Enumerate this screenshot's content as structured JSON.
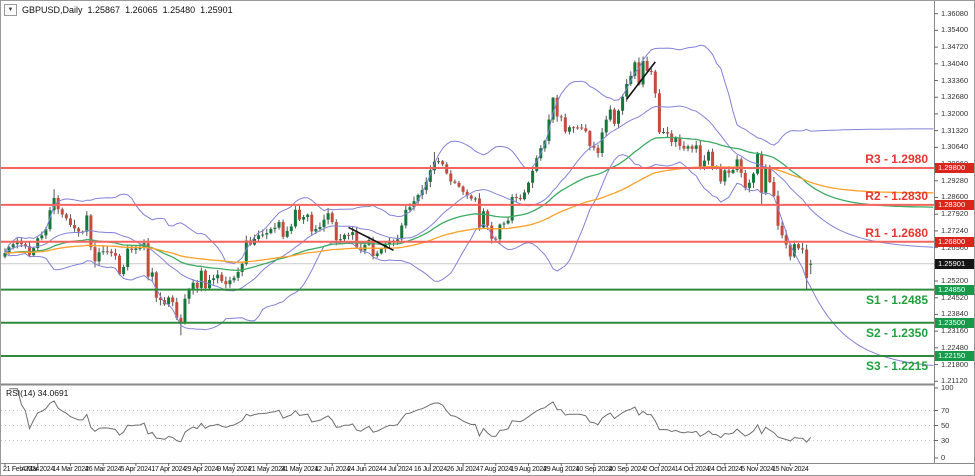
{
  "window": {
    "symbol": "GBPUSD,Daily",
    "ohlc": {
      "open": "1.25867",
      "high": "1.26065",
      "low": "1.25480",
      "close": "1.25901"
    },
    "collapse_icon": "▼"
  },
  "rsi": {
    "name_label": "RSI(14)",
    "value_label": "34.0691",
    "levels": [
      70,
      50,
      30
    ],
    "scale_labels": [
      {
        "text": "100",
        "value": 100
      },
      {
        "text": "70",
        "value": 70
      },
      {
        "text": "50",
        "value": 50
      },
      {
        "text": "30",
        "value": 30
      },
      {
        "text": "0",
        "value": 0
      }
    ]
  },
  "price_axis": {
    "ticks": [
      "1.36080",
      "1.35400",
      "1.34720",
      "1.34040",
      "1.33360",
      "1.32680",
      "1.32000",
      "1.31320",
      "1.30640",
      "1.29960",
      "1.29280",
      "1.28600",
      "1.27920",
      "1.27240",
      "1.26560",
      "1.25880",
      "1.25200",
      "1.24520",
      "1.23840",
      "1.23160",
      "1.22480",
      "1.21800",
      "1.21120"
    ]
  },
  "date_axis": {
    "labels": [
      "21 Feb 2024",
      "4 Mar 2024",
      "14 Mar 2024",
      "26 Mar 2024",
      "5 Apr 2024",
      "17 Apr 2024",
      "29 Apr 2024",
      "9 May 2024",
      "21 May 2024",
      "31 May 2024",
      "12 Jun 2024",
      "24 Jun 2024",
      "4 Jul 2024",
      "16 Jul 2024",
      "26 Jul 2024",
      "7 Aug 2024",
      "19 Aug 2024",
      "29 Aug 2024",
      "10 Sep 2024",
      "20 Sep 2024",
      "2 Oct 2024",
      "14 Oct 2024",
      "24 Oct 2024",
      "5 Nov 2024",
      "15 Nov 2024"
    ],
    "candles_per_label": 8
  },
  "colors": {
    "bull": "#15773a",
    "bear": "#c74b3d",
    "wick": "#555555",
    "bollinger": "#8282d8",
    "ema_fast": "#3cab63",
    "ema_slow": "#ffa028",
    "resistance_line": "#f4645c",
    "support_line": "#2e8b3d",
    "resistance_text": "#e8352e",
    "support_text": "#22a03c",
    "resistance_badge": "#da251d",
    "support_badge": "#169a4a",
    "price_badge": "#151515",
    "current_price_line": "#c8c8c8",
    "rsi_line": "#6e6e6e",
    "trendline": "#151515",
    "axis_border": "#8a8a8a"
  },
  "chart_data": {
    "type": "candlestick",
    "symbol": "GBPUSD",
    "timeframe": "Daily",
    "n_candles": 198,
    "ylim": [
      1.2105,
      1.3627
    ],
    "current_price": {
      "value": 1.25901,
      "label": "1.25901"
    },
    "levels": [
      {
        "id": "R3",
        "label": "R3 - 1.2980",
        "price": 1.298,
        "badge": "1.29800",
        "kind": "resistance"
      },
      {
        "id": "R2",
        "label": "R2 - 1.2830",
        "price": 1.283,
        "badge": "1.28300",
        "kind": "resistance"
      },
      {
        "id": "R1",
        "label": "R1 - 1.2680",
        "price": 1.268,
        "badge": "1.26800",
        "kind": "resistance"
      },
      {
        "id": "S1",
        "label": "S1 - 1.2485",
        "price": 1.2485,
        "badge": "1.24850",
        "kind": "support"
      },
      {
        "id": "S2",
        "label": "S2 - 1.2350",
        "price": 1.235,
        "badge": "1.23500",
        "kind": "support"
      },
      {
        "id": "S3",
        "label": "S3 - 1.2215",
        "price": 1.2215,
        "badge": "1.22150",
        "kind": "support"
      }
    ],
    "indicators": [
      {
        "name": "Bollinger Bands",
        "period": 20,
        "deviation": 2
      },
      {
        "name": "EMA",
        "period": 50
      },
      {
        "name": "EMA",
        "period": 100
      },
      {
        "name": "RSI",
        "period": 14,
        "current_value": 34.0691
      }
    ],
    "trendlines": [
      {
        "points": [
          [
            84,
            1.2738
          ],
          [
            95,
            1.2645
          ]
        ]
      },
      {
        "points": [
          [
            152,
            1.326
          ],
          [
            159,
            1.3412
          ]
        ]
      }
    ],
    "price_anchors": [
      [
        0,
        1.2634
      ],
      [
        1,
        1.2657
      ],
      [
        2,
        1.267
      ],
      [
        3,
        1.2684
      ],
      [
        5,
        1.2662
      ],
      [
        6,
        1.2625
      ],
      [
        7,
        1.2654
      ],
      [
        8,
        1.2694
      ],
      [
        10,
        1.2731
      ],
      [
        11,
        1.2808
      ],
      [
        12,
        1.2858
      ],
      [
        13,
        1.2812
      ],
      [
        14,
        1.2791
      ],
      [
        16,
        1.2748
      ],
      [
        17,
        1.2734
      ],
      [
        19,
        1.2721
      ],
      [
        20,
        1.2787
      ],
      [
        21,
        1.2658
      ],
      [
        22,
        1.26
      ],
      [
        23,
        1.2637
      ],
      [
        25,
        1.264
      ],
      [
        27,
        1.2623
      ],
      [
        28,
        1.2548
      ],
      [
        29,
        1.2577
      ],
      [
        30,
        1.2652
      ],
      [
        33,
        1.2654
      ],
      [
        34,
        1.2674
      ],
      [
        35,
        1.2538
      ],
      [
        36,
        1.2555
      ],
      [
        37,
        1.2452
      ],
      [
        39,
        1.2425
      ],
      [
        40,
        1.2453
      ],
      [
        41,
        1.2434
      ],
      [
        42,
        1.237
      ],
      [
        43,
        1.235
      ],
      [
        44,
        1.2448
      ],
      [
        46,
        1.2513
      ],
      [
        47,
        1.2492
      ],
      [
        48,
        1.2562
      ],
      [
        49,
        1.2491
      ],
      [
        50,
        1.2524
      ],
      [
        52,
        1.2546
      ],
      [
        54,
        1.2507
      ],
      [
        55,
        1.2523
      ],
      [
        57,
        1.2557
      ],
      [
        58,
        1.259
      ],
      [
        59,
        1.2685
      ],
      [
        60,
        1.2668
      ],
      [
        62,
        1.2706
      ],
      [
        63,
        1.2709
      ],
      [
        64,
        1.2715
      ],
      [
        66,
        1.2737
      ],
      [
        67,
        1.276
      ],
      [
        68,
        1.27
      ],
      [
        70,
        1.2742
      ],
      [
        71,
        1.281
      ],
      [
        72,
        1.277
      ],
      [
        74,
        1.279
      ],
      [
        75,
        1.2722
      ],
      [
        77,
        1.274
      ],
      [
        79,
        1.2796
      ],
      [
        80,
        1.276
      ],
      [
        81,
        1.2686
      ],
      [
        83,
        1.2708
      ],
      [
        85,
        1.2719
      ],
      [
        86,
        1.2657
      ],
      [
        87,
        1.2644
      ],
      [
        89,
        1.2687
      ],
      [
        90,
        1.2622
      ],
      [
        92,
        1.265
      ],
      [
        94,
        1.2684
      ],
      [
        96,
        1.269
      ],
      [
        98,
        1.281
      ],
      [
        100,
        1.2845
      ],
      [
        102,
        1.289
      ],
      [
        104,
        1.2971
      ],
      [
        105,
        1.3006
      ],
      [
        107,
        1.2995
      ],
      [
        109,
        1.2925
      ],
      [
        111,
        1.2904
      ],
      [
        113,
        1.2868
      ],
      [
        115,
        1.2856
      ],
      [
        116,
        1.2738
      ],
      [
        117,
        1.2804
      ],
      [
        119,
        1.2692
      ],
      [
        120,
        1.269
      ],
      [
        121,
        1.275
      ],
      [
        123,
        1.2766
      ],
      [
        124,
        1.2862
      ],
      [
        126,
        1.2853
      ],
      [
        128,
        1.292
      ],
      [
        130,
        1.302
      ],
      [
        132,
        1.309
      ],
      [
        134,
        1.3266
      ],
      [
        135,
        1.319
      ],
      [
        136,
        1.3186
      ],
      [
        137,
        1.3128
      ],
      [
        138,
        1.3146
      ],
      [
        140,
        1.3145
      ],
      [
        142,
        1.313
      ],
      [
        143,
        1.307
      ],
      [
        145,
        1.3041
      ],
      [
        146,
        1.3125
      ],
      [
        148,
        1.3218
      ],
      [
        149,
        1.316
      ],
      [
        150,
        1.3213
      ],
      [
        152,
        1.3322
      ],
      [
        153,
        1.3355
      ],
      [
        154,
        1.341
      ],
      [
        155,
        1.332
      ],
      [
        156,
        1.3416
      ],
      [
        157,
        1.3375
      ],
      [
        158,
        1.3372
      ],
      [
        159,
        1.3284
      ],
      [
        160,
        1.3125
      ],
      [
        161,
        1.3126
      ],
      [
        162,
        1.312
      ],
      [
        163,
        1.3086
      ],
      [
        164,
        1.3102
      ],
      [
        165,
        1.307
      ],
      [
        166,
        1.3059
      ],
      [
        167,
        1.3068
      ],
      [
        168,
        1.3058
      ],
      [
        169,
        1.3072
      ],
      [
        170,
        1.2985
      ],
      [
        171,
        1.301
      ],
      [
        172,
        1.3046
      ],
      [
        173,
        1.2985
      ],
      [
        174,
        1.298
      ],
      [
        175,
        1.2925
      ],
      [
        176,
        1.297
      ],
      [
        177,
        1.296
      ],
      [
        178,
        1.2972
      ],
      [
        179,
        1.3015
      ],
      [
        180,
        1.296
      ],
      [
        181,
        1.2899
      ],
      [
        182,
        1.292
      ],
      [
        183,
        1.2957
      ],
      [
        184,
        1.3037
      ],
      [
        185,
        1.288
      ],
      [
        186,
        1.2985
      ],
      [
        187,
        1.2923
      ],
      [
        188,
        1.2867
      ],
      [
        189,
        1.2745
      ],
      [
        190,
        1.2706
      ],
      [
        191,
        1.2668
      ],
      [
        192,
        1.262
      ],
      [
        193,
        1.267
      ],
      [
        194,
        1.2653
      ],
      [
        195,
        1.2648
      ],
      [
        196,
        1.2532
      ],
      [
        197,
        1.25901
      ]
    ],
    "special": {
      "12": {
        "high": 1.2894
      },
      "22": {
        "low": 1.2575
      },
      "43": {
        "low": 1.2299
      },
      "105": {
        "high": 1.3045
      },
      "134": {
        "high": 1.3269
      },
      "156": {
        "high": 1.3434
      },
      "185": {
        "high": 1.3048,
        "low": 1.2833
      },
      "196": {
        "low": 1.2487
      },
      "197": {
        "open": 1.25867,
        "high": 1.26065,
        "low": 1.2548,
        "close": 1.25901
      }
    }
  }
}
